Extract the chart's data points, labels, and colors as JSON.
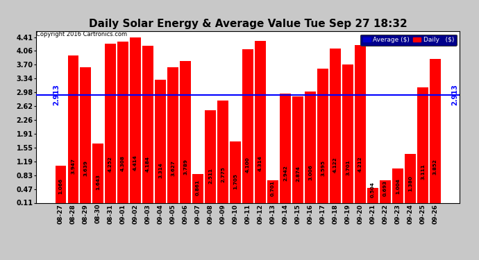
{
  "title": "Daily Solar Energy & Average Value Tue Sep 27 18:32",
  "copyright": "Copyright 2016 Cartronics.com",
  "categories": [
    "08-27",
    "08-28",
    "08-29",
    "08-30",
    "08-31",
    "09-01",
    "09-02",
    "09-03",
    "09-04",
    "09-05",
    "09-06",
    "09-07",
    "09-08",
    "09-09",
    "09-10",
    "09-11",
    "09-12",
    "09-13",
    "09-14",
    "09-15",
    "09-16",
    "09-17",
    "09-18",
    "09-19",
    "09-20",
    "09-21",
    "09-22",
    "09-23",
    "09-24",
    "09-25",
    "09-26"
  ],
  "values": [
    1.066,
    3.947,
    3.639,
    1.643,
    4.252,
    4.308,
    4.414,
    4.184,
    3.314,
    3.627,
    3.789,
    0.861,
    2.511,
    2.775,
    1.705,
    4.1,
    4.314,
    0.701,
    2.942,
    2.874,
    3.006,
    3.595,
    4.122,
    3.701,
    4.212,
    0.504,
    0.693,
    1.004,
    1.38,
    3.111,
    3.852
  ],
  "average": 2.913,
  "bar_color": "#ff0000",
  "avg_line_color": "#0000ff",
  "background_color": "#c8c8c8",
  "plot_bg_color": "#ffffff",
  "grid_color": "#ffffff",
  "title_fontsize": 11,
  "legend_avg_color": "#0000cd",
  "legend_daily_color": "#ff0000",
  "ylim_min": 0.11,
  "ylim_max": 4.57,
  "yticks": [
    0.11,
    0.47,
    0.83,
    1.19,
    1.55,
    1.91,
    2.26,
    2.62,
    2.98,
    3.34,
    3.7,
    4.06,
    4.41
  ]
}
